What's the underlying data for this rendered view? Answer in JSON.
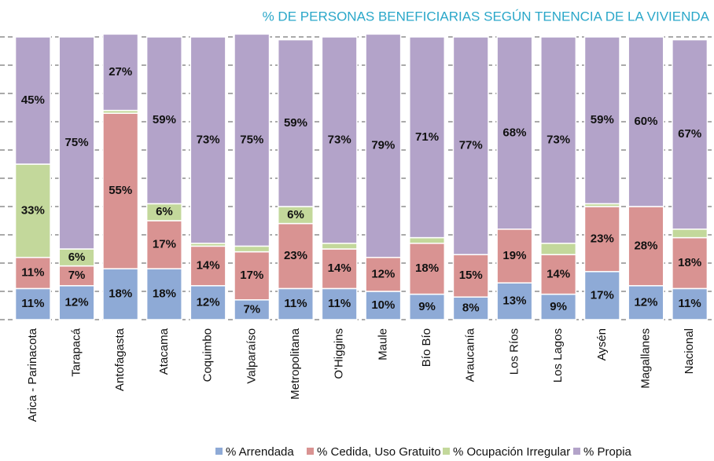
{
  "chart_data": {
    "type": "stacked_bar",
    "title": "% DE PERSONAS BENEFICIARIAS SEGÚN TENENCIA DE LA VIVIENDA",
    "categories": [
      "Arica - Parinacota",
      "Tarapacá",
      "Antofagasta",
      "Atacama",
      "Coquimbo",
      "Valparaíso",
      "Metropolitana",
      "O'Higgins",
      "Maule",
      "Bío Bío",
      "Araucanía",
      "Los Ríos",
      "Los Lagos",
      "Aysén",
      "Magallanes",
      "Nacional"
    ],
    "series": [
      {
        "name": "% Arrendada",
        "color": "#8eaad6",
        "values": [
          11,
          12,
          18,
          18,
          12,
          7,
          11,
          11,
          10,
          9,
          8,
          13,
          9,
          17,
          12,
          11
        ],
        "value_labels": [
          "11%",
          "12%",
          "18%",
          "18%",
          "12%",
          "7%",
          "11%",
          "11%",
          "10%",
          "9%",
          "8%",
          "13%",
          "9%",
          "17%",
          "12%",
          "11%"
        ]
      },
      {
        "name": "% Cedida, Uso Gratuito",
        "color": "#d99392",
        "values": [
          11,
          7,
          55,
          17,
          14,
          17,
          23,
          14,
          12,
          18,
          15,
          19,
          14,
          23,
          28,
          18
        ],
        "value_labels": [
          "11%",
          "7%",
          "55%",
          "17%",
          "14%",
          "17%",
          "23%",
          "14%",
          "12%",
          "18%",
          "15%",
          "19%",
          "14%",
          "23%",
          "28%",
          "18%"
        ]
      },
      {
        "name": "% Ocupación Irregular",
        "color": "#c3d89b",
        "values": [
          33,
          6,
          1,
          6,
          1,
          2,
          6,
          2,
          0,
          2,
          0,
          0,
          4,
          1,
          0,
          3
        ],
        "value_labels": [
          "33%",
          "6%",
          "1%",
          "6%",
          "1%",
          "2%",
          "6%",
          "2%",
          "0%",
          "2%",
          "0%",
          "0%",
          "4%",
          "1%",
          "0%",
          "3%"
        ]
      },
      {
        "name": "% Propia",
        "color": "#b3a3c9",
        "values": [
          45,
          75,
          27,
          59,
          73,
          75,
          59,
          73,
          79,
          71,
          77,
          68,
          73,
          59,
          60,
          67
        ],
        "value_labels": [
          "45%",
          "75%",
          "27%",
          "59%",
          "73%",
          "75%",
          "59%",
          "73%",
          "79%",
          "71%",
          "77%",
          "68%",
          "73%",
          "59%",
          "60%",
          "67%"
        ]
      }
    ],
    "ylim": [
      0,
      100
    ],
    "yticks": [
      0,
      10,
      20,
      30,
      40,
      50,
      60,
      70,
      80,
      90,
      100
    ],
    "grid": true
  }
}
